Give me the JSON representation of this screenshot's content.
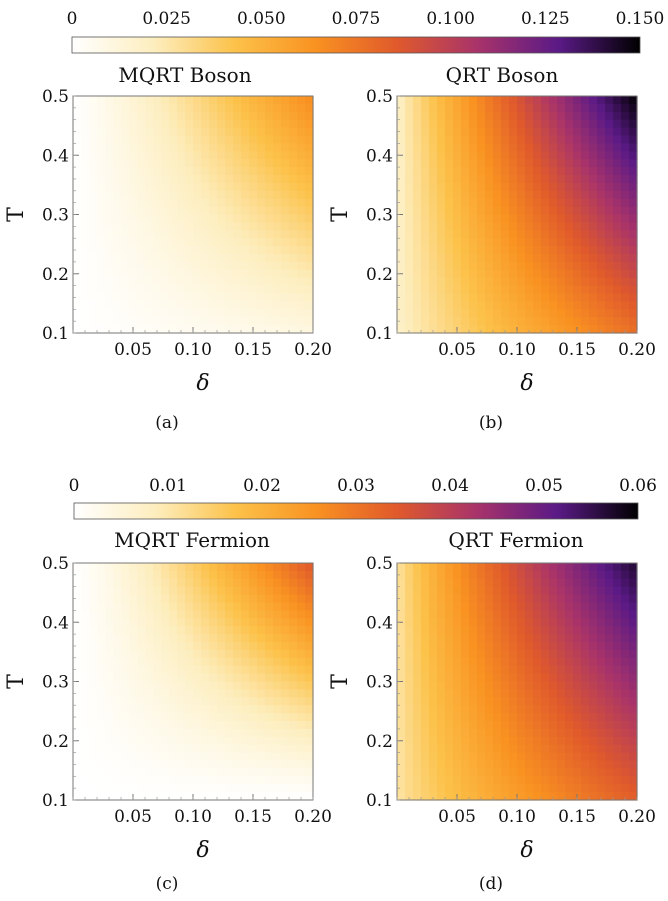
{
  "colorbars": [
    {
      "tick_labels": [
        "0",
        "0.025",
        "0.050",
        "0.075",
        "0.100",
        "0.125",
        "0.150"
      ],
      "range": [
        0,
        0.15
      ],
      "colors": [
        "#ffffff",
        "#fdeebf",
        "#fcc24a",
        "#f99221",
        "#e05a2b",
        "#a8336a",
        "#5a1a86",
        "#000000"
      ]
    },
    {
      "tick_labels": [
        "0",
        "0.01",
        "0.02",
        "0.03",
        "0.04",
        "0.05",
        "0.06"
      ],
      "range": [
        0,
        0.06
      ],
      "colors": [
        "#ffffff",
        "#fdeebf",
        "#fcc24a",
        "#f99221",
        "#e05a2b",
        "#a8336a",
        "#5a1a86",
        "#000000"
      ]
    }
  ],
  "chart_data": [
    {
      "type": "heatmap",
      "title": "MQRT Boson",
      "xlabel": "δ",
      "ylabel": "T",
      "xlim": [
        0,
        0.2
      ],
      "ylim": [
        0.1,
        0.5
      ],
      "x_ticks": [
        "0.05",
        "0.10",
        "0.15",
        "0.20"
      ],
      "y_ticks": [
        "0.1",
        "0.2",
        "0.3",
        "0.4",
        "0.5"
      ],
      "panel_label": "(a)",
      "colorscale_max": 0.15,
      "peak_value": 0.067,
      "peak_at": [
        0.2,
        0.5
      ]
    },
    {
      "type": "heatmap",
      "title": "QRT Boson",
      "xlabel": "δ",
      "ylabel": "T",
      "xlim": [
        0,
        0.2
      ],
      "ylim": [
        0.1,
        0.5
      ],
      "x_ticks": [
        "0.05",
        "0.10",
        "0.15",
        "0.20"
      ],
      "y_ticks": [
        "0.1",
        "0.2",
        "0.3",
        "0.4",
        "0.5"
      ],
      "panel_label": "(b)",
      "colorscale_max": 0.15,
      "peak_value": 0.15,
      "peak_at": [
        0.2,
        0.5
      ]
    },
    {
      "type": "heatmap",
      "title": "MQRT Fermion",
      "xlabel": "δ",
      "ylabel": "T",
      "xlim": [
        0,
        0.2
      ],
      "ylim": [
        0.1,
        0.5
      ],
      "x_ticks": [
        "0.05",
        "0.10",
        "0.15",
        "0.20"
      ],
      "y_ticks": [
        "0.1",
        "0.2",
        "0.3",
        "0.4",
        "0.5"
      ],
      "panel_label": "(c)",
      "colorscale_max": 0.06,
      "peak_value": 0.035,
      "peak_at": [
        0.2,
        0.5
      ]
    },
    {
      "type": "heatmap",
      "title": "QRT Fermion",
      "xlabel": "δ",
      "ylabel": "T",
      "xlim": [
        0,
        0.2
      ],
      "ylim": [
        0.1,
        0.5
      ],
      "x_ticks": [
        "0.05",
        "0.10",
        "0.15",
        "0.20"
      ],
      "y_ticks": [
        "0.1",
        "0.2",
        "0.3",
        "0.4",
        "0.5"
      ],
      "panel_label": "(d)",
      "colorscale_max": 0.06,
      "peak_value": 0.057,
      "peak_at": [
        0.2,
        0.5
      ]
    }
  ]
}
